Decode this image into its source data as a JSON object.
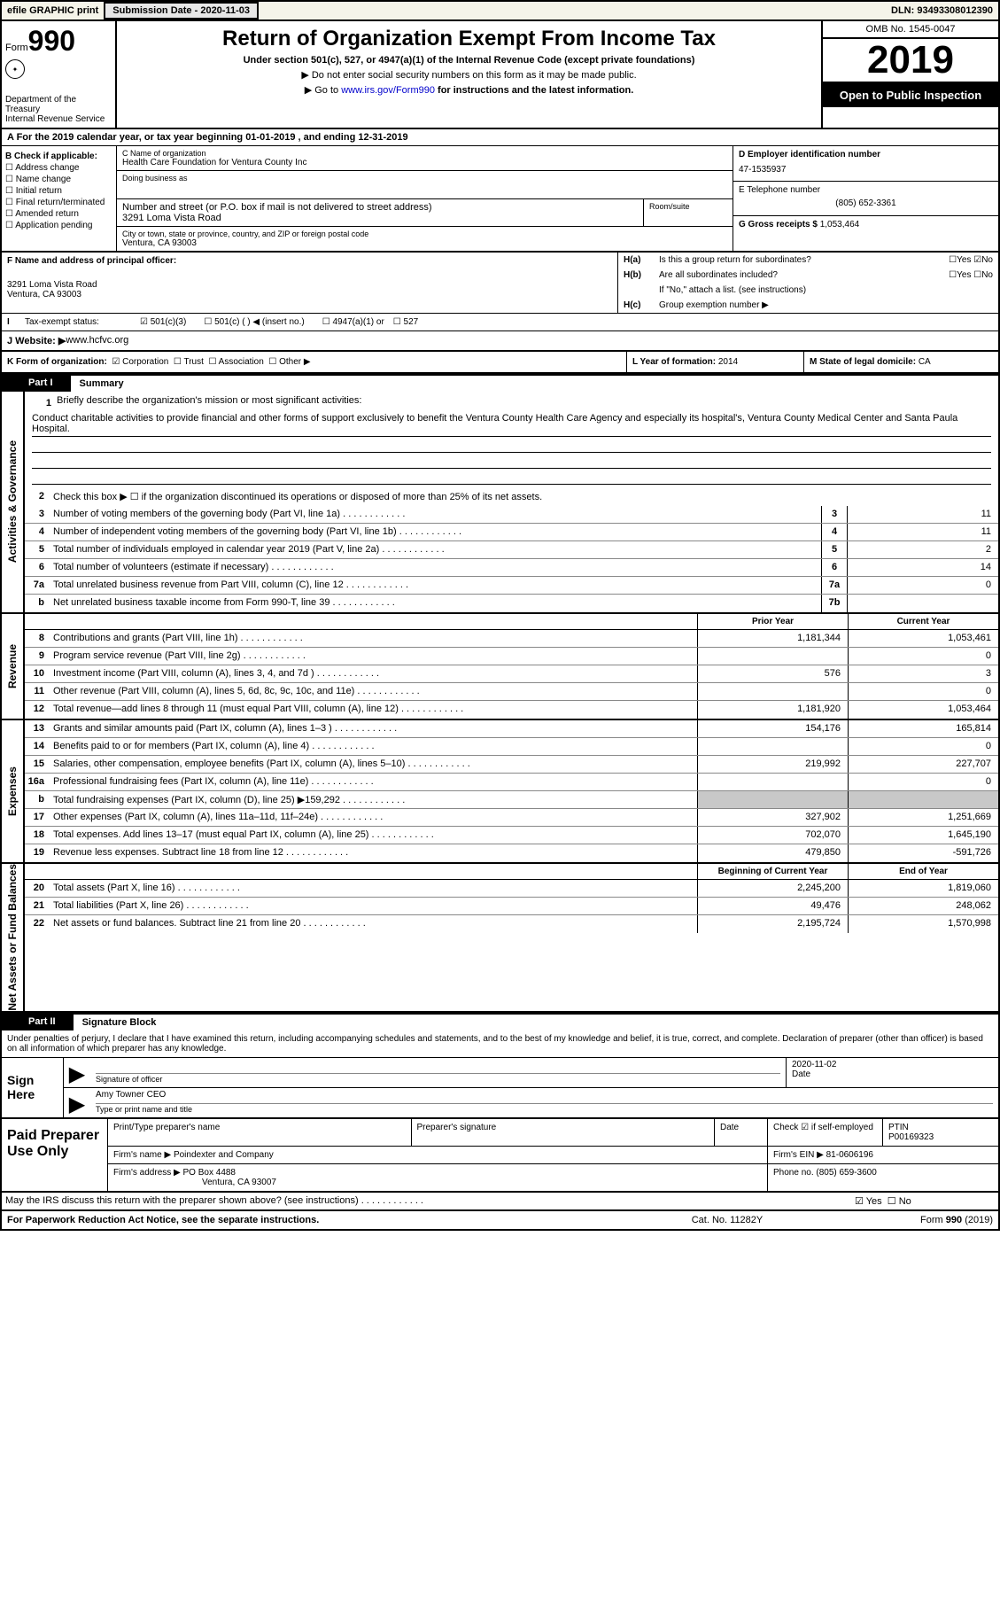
{
  "topbar": {
    "efile": "efile GRAPHIC print",
    "sub_label": "Submission Date - ",
    "sub_date": "2020-11-03",
    "dln_label": "DLN: ",
    "dln": "93493308012390"
  },
  "header": {
    "form_prefix": "Form",
    "form_no": "990",
    "dept": "Department of the Treasury\nInternal Revenue Service",
    "title": "Return of Organization Exempt From Income Tax",
    "sub": "Under section 501(c), 527, or 4947(a)(1) of the Internal Revenue Code (except private foundations)",
    "note1": "▶ Do not enter social security numbers on this form as it may be made public.",
    "note2_pre": "▶ Go to ",
    "note2_link": "www.irs.gov/Form990",
    "note2_post": " for instructions and the latest information.",
    "omb": "OMB No. 1545-0047",
    "year": "2019",
    "inspect": "Open to Public Inspection"
  },
  "row_a": "A For the 2019 calendar year, or tax year beginning 01-01-2019   , and ending 12-31-2019",
  "col_b": {
    "title": "B Check if applicable:",
    "items": [
      "Address change",
      "Name change",
      "Initial return",
      "Final return/terminated",
      "Amended return",
      "Application pending"
    ]
  },
  "col_c": {
    "name_lbl": "C Name of organization",
    "name": "Health Care Foundation for Ventura County Inc",
    "dba_lbl": "Doing business as",
    "dba": "",
    "addr_lbl": "Number and street (or P.O. box if mail is not delivered to street address)",
    "room_lbl": "Room/suite",
    "addr": "3291 Loma Vista Road",
    "city_lbl": "City or town, state or province, country, and ZIP or foreign postal code",
    "city": "Ventura, CA  93003"
  },
  "col_de": {
    "d_lbl": "D Employer identification number",
    "d_val": "47-1535937",
    "e_lbl": "E Telephone number",
    "e_val": "(805) 652-3361",
    "g_lbl": "G Gross receipts $ ",
    "g_val": "1,053,464"
  },
  "col_f": {
    "lbl": "F  Name and address of principal officer:",
    "addr1": "3291 Loma Vista Road",
    "addr2": "Ventura, CA  93003"
  },
  "col_h": {
    "ha_t": "Is this a group return for subordinates?",
    "ha_yes": "Yes",
    "ha_no": "No",
    "hb_t": "Are all subordinates included?",
    "hb_note": "If \"No,\" attach a list. (see instructions)",
    "hc_t": "Group exemption number ▶"
  },
  "row_i": {
    "lbl": "Tax-exempt status:",
    "o1": "501(c)(3)",
    "o2": "501(c) (   ) ◀ (insert no.)",
    "o3": "4947(a)(1) or",
    "o4": "527"
  },
  "row_j": {
    "lbl": "J   Website: ▶",
    "val": "  www.hcfvc.org"
  },
  "row_k": {
    "k_lbl": "K Form of organization:",
    "k_opts": [
      "Corporation",
      "Trust",
      "Association",
      "Other ▶"
    ],
    "l_lbl": "L Year of formation: ",
    "l_val": "2014",
    "m_lbl": "M State of legal domicile: ",
    "m_val": "CA"
  },
  "part1": {
    "num": "Part I",
    "title": "Summary",
    "mission_lbl": "Briefly describe the organization's mission or most significant activities:",
    "mission": "Conduct charitable activities to provide financial and other forms of support exclusively to benefit the Ventura County Health Care Agency and especially its hospital's, Ventura County Medical Center and Santa Paula Hospital.",
    "line2": "Check this box ▶ ☐  if the organization discontinued its operations or disposed of more than 25% of its net assets.",
    "gov_lines": [
      {
        "n": "3",
        "t": "Number of voting members of the governing body (Part VI, line 1a)",
        "box": "3",
        "v": "11"
      },
      {
        "n": "4",
        "t": "Number of independent voting members of the governing body (Part VI, line 1b)",
        "box": "4",
        "v": "11"
      },
      {
        "n": "5",
        "t": "Total number of individuals employed in calendar year 2019 (Part V, line 2a)",
        "box": "5",
        "v": "2"
      },
      {
        "n": "6",
        "t": "Total number of volunteers (estimate if necessary)",
        "box": "6",
        "v": "14"
      },
      {
        "n": "7a",
        "t": "Total unrelated business revenue from Part VIII, column (C), line 12",
        "box": "7a",
        "v": "0"
      },
      {
        "n": "b",
        "t": "Net unrelated business taxable income from Form 990-T, line 39",
        "box": "7b",
        "v": ""
      }
    ],
    "col_prior": "Prior Year",
    "col_curr": "Current Year",
    "rev_lines": [
      {
        "n": "8",
        "t": "Contributions and grants (Part VIII, line 1h)",
        "p": "1,181,344",
        "c": "1,053,461"
      },
      {
        "n": "9",
        "t": "Program service revenue (Part VIII, line 2g)",
        "p": "",
        "c": "0"
      },
      {
        "n": "10",
        "t": "Investment income (Part VIII, column (A), lines 3, 4, and 7d )",
        "p": "576",
        "c": "3"
      },
      {
        "n": "11",
        "t": "Other revenue (Part VIII, column (A), lines 5, 6d, 8c, 9c, 10c, and 11e)",
        "p": "",
        "c": "0"
      },
      {
        "n": "12",
        "t": "Total revenue—add lines 8 through 11 (must equal Part VIII, column (A), line 12)",
        "p": "1,181,920",
        "c": "1,053,464"
      }
    ],
    "exp_lines": [
      {
        "n": "13",
        "t": "Grants and similar amounts paid (Part IX, column (A), lines 1–3 )",
        "p": "154,176",
        "c": "165,814"
      },
      {
        "n": "14",
        "t": "Benefits paid to or for members (Part IX, column (A), line 4)",
        "p": "",
        "c": "0"
      },
      {
        "n": "15",
        "t": "Salaries, other compensation, employee benefits (Part IX, column (A), lines 5–10)",
        "p": "219,992",
        "c": "227,707"
      },
      {
        "n": "16a",
        "t": "Professional fundraising fees (Part IX, column (A), line 11e)",
        "p": "",
        "c": "0"
      },
      {
        "n": "b",
        "t": "Total fundraising expenses (Part IX, column (D), line 25) ▶159,292",
        "p": "grey",
        "c": "grey"
      },
      {
        "n": "17",
        "t": "Other expenses (Part IX, column (A), lines 11a–11d, 11f–24e)",
        "p": "327,902",
        "c": "1,251,669"
      },
      {
        "n": "18",
        "t": "Total expenses. Add lines 13–17 (must equal Part IX, column (A), line 25)",
        "p": "702,070",
        "c": "1,645,190"
      },
      {
        "n": "19",
        "t": "Revenue less expenses. Subtract line 18 from line 12",
        "p": "479,850",
        "c": "-591,726"
      }
    ],
    "net_hdr_p": "Beginning of Current Year",
    "net_hdr_c": "End of Year",
    "net_lines": [
      {
        "n": "20",
        "t": "Total assets (Part X, line 16)",
        "p": "2,245,200",
        "c": "1,819,060"
      },
      {
        "n": "21",
        "t": "Total liabilities (Part X, line 26)",
        "p": "49,476",
        "c": "248,062"
      },
      {
        "n": "22",
        "t": "Net assets or fund balances. Subtract line 21 from line 20",
        "p": "2,195,724",
        "c": "1,570,998"
      }
    ],
    "vtab_gov": "Activities & Governance",
    "vtab_rev": "Revenue",
    "vtab_exp": "Expenses",
    "vtab_net": "Net Assets or Fund Balances"
  },
  "part2": {
    "num": "Part II",
    "title": "Signature Block",
    "decl": "Under penalties of perjury, I declare that I have examined this return, including accompanying schedules and statements, and to the best of my knowledge and belief, it is true, correct, and complete. Declaration of preparer (other than officer) is based on all information of which preparer has any knowledge.",
    "sign_here": "Sign Here",
    "sig_lbl": "Signature of officer",
    "date_lbl": "Date",
    "sig_date": "2020-11-02",
    "name": "Amy Towner CEO",
    "name_lbl": "Type or print name and title",
    "paid": "Paid Preparer Use Only",
    "pt_name_lbl": "Print/Type preparer's name",
    "pt_sig_lbl": "Preparer's signature",
    "pt_date_lbl": "Date",
    "pt_chk": "Check ☑ if self-employed",
    "ptin_lbl": "PTIN",
    "ptin": "P00169323",
    "firm_name_lbl": "Firm's name    ▶ ",
    "firm_name": "Poindexter and Company",
    "firm_ein_lbl": "Firm's EIN ▶ ",
    "firm_ein": "81-0606196",
    "firm_addr_lbl": "Firm's address ▶ ",
    "firm_addr": "PO Box 4488",
    "firm_city": "Ventura, CA  93007",
    "phone_lbl": "Phone no. ",
    "phone": "(805) 659-3600",
    "discuss": "May the IRS discuss this return with the preparer shown above? (see instructions)",
    "yes": "Yes",
    "no": "No"
  },
  "footer": {
    "pra": "For Paperwork Reduction Act Notice, see the separate instructions.",
    "cat": "Cat. No. 11282Y",
    "form": "Form 990 (2019)"
  }
}
